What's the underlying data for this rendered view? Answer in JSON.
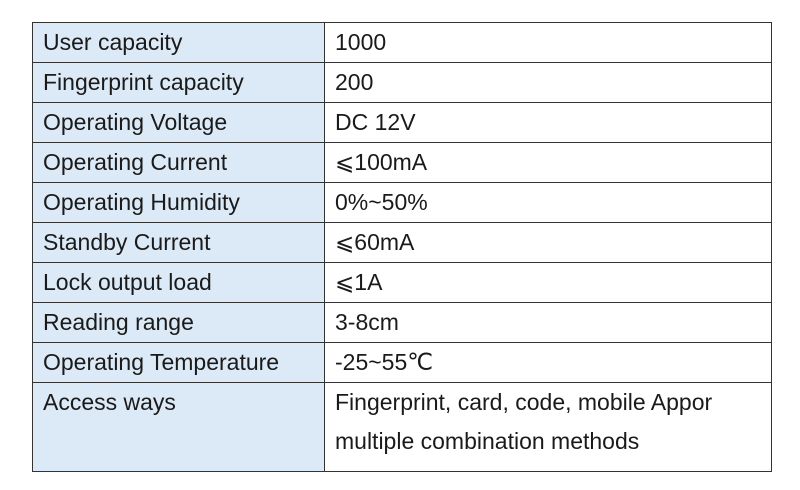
{
  "table": {
    "rows": [
      [
        "User capacity",
        "1000"
      ],
      [
        "Fingerprint capacity",
        "200"
      ],
      [
        "Operating Voltage",
        "DC 12V"
      ],
      [
        "Operating Current",
        "⩽100mA"
      ],
      [
        "Operating Humidity",
        "0%~50%"
      ],
      [
        "Standby Current",
        "⩽60mA"
      ],
      [
        "Lock output load",
        "⩽1A"
      ],
      [
        "Reading range",
        "3-8cm"
      ],
      [
        "Operating Temperature",
        "-25~55℃"
      ],
      [
        "Access ways",
        [
          "Fingerprint, card, code, mobile Appor",
          "multiple combination methods"
        ]
      ]
    ]
  }
}
